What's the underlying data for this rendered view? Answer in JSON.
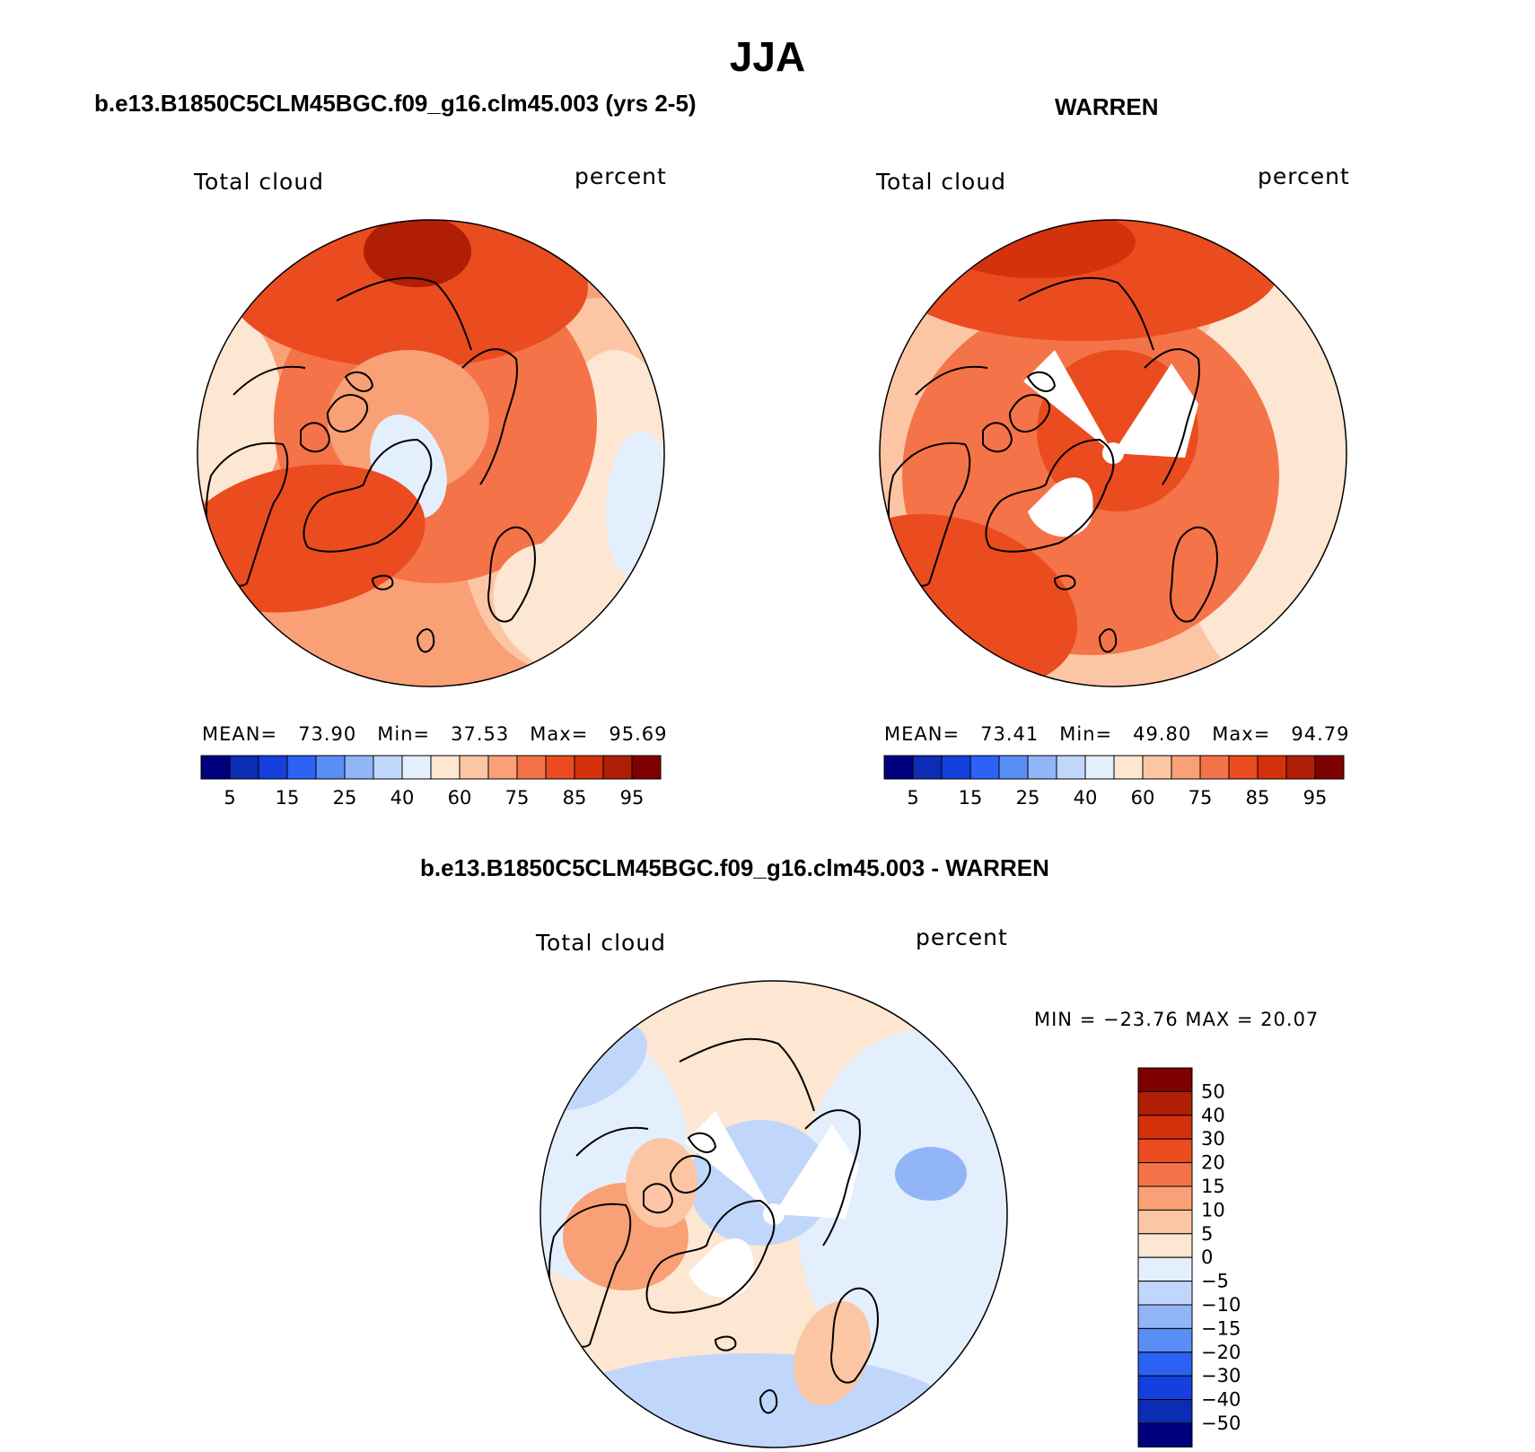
{
  "title": "JJA",
  "colors": {
    "abs_scale": [
      "#00007f",
      "#0c2cb3",
      "#1540de",
      "#2c62f5",
      "#5a8ef7",
      "#92b5f8",
      "#c1d6fb",
      "#e4effd",
      "#fde6d2",
      "#fcc6a5",
      "#f9a077",
      "#f47348",
      "#ea4c1f",
      "#d4310d",
      "#b11e06",
      "#7f0000"
    ],
    "diff_scale": [
      "#00007f",
      "#0c2cb3",
      "#1540de",
      "#2c62f5",
      "#5a8ef7",
      "#92b5f8",
      "#c1d6fb",
      "#e4effd",
      "#fde6d2",
      "#fcc6a5",
      "#f9a077",
      "#f47348",
      "#ea4c1f",
      "#d4310d",
      "#b11e06",
      "#7f0000"
    ]
  },
  "panels": {
    "model": {
      "title": "b.e13.B1850C5CLM45BGC.f09_g16.clm45.003 (yrs 2-5)",
      "variable": "Total cloud",
      "units": "percent",
      "mean_label": "MEAN=",
      "mean": "73.90",
      "min_label": "Min=",
      "min": "37.53",
      "max_label": "Max=",
      "max": "95.69"
    },
    "obs": {
      "title": "WARREN",
      "variable": "Total cloud",
      "units": "percent",
      "mean_label": "MEAN=",
      "mean": "73.41",
      "min_label": "Min=",
      "min": "49.80",
      "max_label": "Max=",
      "max": "94.79"
    },
    "diff": {
      "title": "b.e13.B1850C5CLM45BGC.f09_g16.clm45.003 - WARREN",
      "variable": "Total cloud",
      "units": "percent",
      "minmax": "MIN = −23.76 MAX =  20.07"
    }
  },
  "chart_data": [
    {
      "type": "heatmap",
      "title": "b.e13.B1850C5CLM45BGC.f09_g16.clm45.003 (yrs 2-5)",
      "variable": "Total cloud",
      "units": "percent",
      "projection": "north polar stereographic",
      "stats": {
        "mean": 73.9,
        "min": 37.53,
        "max": 95.69
      },
      "colorbar": {
        "orientation": "horizontal",
        "tick_labels": [
          "5",
          "15",
          "25",
          "40",
          "60",
          "75",
          "85",
          "95"
        ]
      }
    },
    {
      "type": "heatmap",
      "title": "WARREN",
      "variable": "Total cloud",
      "units": "percent",
      "projection": "north polar stereographic",
      "stats": {
        "mean": 73.41,
        "min": 49.8,
        "max": 94.79
      },
      "colorbar": {
        "orientation": "horizontal",
        "tick_labels": [
          "5",
          "15",
          "25",
          "40",
          "60",
          "75",
          "85",
          "95"
        ]
      }
    },
    {
      "type": "heatmap",
      "title": "b.e13.B1850C5CLM45BGC.f09_g16.clm45.003 - WARREN",
      "variable": "Total cloud",
      "units": "percent",
      "projection": "north polar stereographic",
      "stats": {
        "min": -23.76,
        "max": 20.07
      },
      "colorbar": {
        "orientation": "vertical",
        "tick_labels": [
          "50",
          "40",
          "30",
          "20",
          "15",
          "10",
          "5",
          "0",
          "−5",
          "−10",
          "−15",
          "−20",
          "−30",
          "−40",
          "−50"
        ]
      }
    }
  ]
}
